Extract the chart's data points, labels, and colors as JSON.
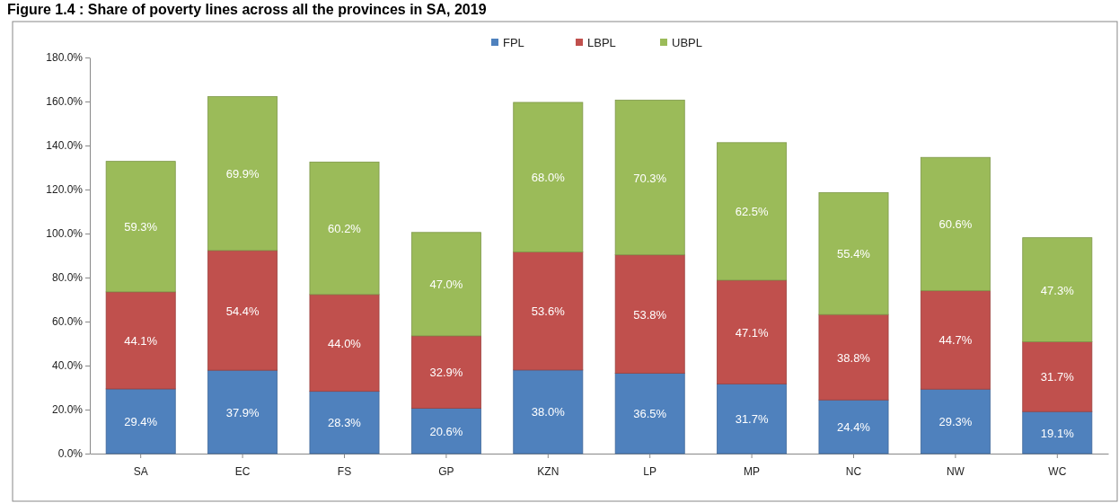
{
  "chart_data": {
    "type": "bar",
    "stacked": true,
    "title": "Figure 1.4 : Share of poverty lines across all the provinces in SA, 2019",
    "categories": [
      "SA",
      "EC",
      "FS",
      "GP",
      "KZN",
      "LP",
      "MP",
      "NC",
      "NW",
      "WC"
    ],
    "series": [
      {
        "name": "FPL",
        "color": "#4f81bd",
        "values": [
          29.4,
          37.9,
          28.3,
          20.6,
          38.0,
          36.5,
          31.7,
          24.4,
          29.3,
          19.1
        ],
        "value_labels": [
          "29.4%",
          "37.9%",
          "28.3%",
          "20.6%",
          "38.0%",
          "36.5%",
          "31.7%",
          "24.4%",
          "29.3%",
          "19.1%"
        ]
      },
      {
        "name": "LBPL",
        "color": "#c0504d",
        "values": [
          44.1,
          54.4,
          44.0,
          32.9,
          53.6,
          53.8,
          47.1,
          38.8,
          44.7,
          31.7
        ],
        "value_labels": [
          "44.1%",
          "54.4%",
          "44.0%",
          "32.9%",
          "53.6%",
          "53.8%",
          "47.1%",
          "38.8%",
          "44.7%",
          "31.7%"
        ]
      },
      {
        "name": "UBPL",
        "color": "#9bbb59",
        "values": [
          59.3,
          69.9,
          60.2,
          47.0,
          68.0,
          70.3,
          62.5,
          55.4,
          60.6,
          47.3
        ],
        "value_labels": [
          "59.3%",
          "69.9%",
          "60.2%",
          "47.0%",
          "68.0%",
          "70.3%",
          "62.5%",
          "55.4%",
          "60.6%",
          "47.3%"
        ]
      }
    ],
    "ylim": [
      0,
      180
    ],
    "yticks": [
      {
        "value": 0,
        "label": "0.0%"
      },
      {
        "value": 20,
        "label": "20.0%"
      },
      {
        "value": 40,
        "label": "40.0%"
      },
      {
        "value": 60,
        "label": "60.0%"
      },
      {
        "value": 80,
        "label": "80.0%"
      },
      {
        "value": 100,
        "label": "100.0%"
      },
      {
        "value": 120,
        "label": "120.0%"
      },
      {
        "value": 140,
        "label": "140.0%"
      },
      {
        "value": 160,
        "label": "160.0%"
      },
      {
        "value": 180,
        "label": "180.0%"
      }
    ],
    "legend": "top"
  }
}
